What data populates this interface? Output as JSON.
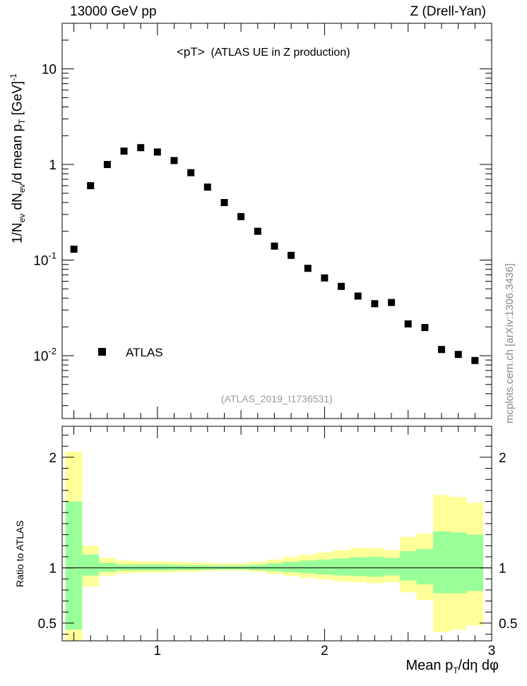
{
  "header": {
    "energy_label": "13000 GeV pp",
    "process_label": "Z (Drell-Yan)"
  },
  "watermark": "mcplots.cern.ch [arXiv:1306.3436]",
  "colors": {
    "data_marker": "#000000",
    "band_outer": "#ffff99",
    "band_inner": "#99ff99",
    "analysis_text": "#999999"
  },
  "chart_data": [
    {
      "type": "scatter",
      "title_main": "<pT>",
      "title_sub": "(ATLAS UE in Z production)",
      "analysis_id": "(ATLAS_2019_I1736531)",
      "ylabel": "1/N_ev dN_ev/d mean p_T [GeV]^-1",
      "ylabel_parts": {
        "a": "1/N",
        "b": "ev",
        "c": " dN",
        "d": "ev",
        "e": "/d mean p",
        "f": "T",
        "g": " [GeV]",
        "h": "-1"
      },
      "yscale": "log",
      "ylim": [
        0.0022,
        30
      ],
      "xlim": [
        0.43,
        3.0
      ],
      "y_tick_labels": [
        "10",
        "1",
        "10^-1",
        "10^-2"
      ],
      "legend": [
        {
          "name": "ATLAS",
          "marker": "square"
        }
      ],
      "series": [
        {
          "name": "ATLAS",
          "x": [
            0.5,
            0.6,
            0.7,
            0.8,
            0.9,
            1.0,
            1.1,
            1.2,
            1.3,
            1.4,
            1.5,
            1.6,
            1.7,
            1.8,
            1.9,
            2.0,
            2.1,
            2.2,
            2.3,
            2.4,
            2.5,
            2.6,
            2.7,
            2.8,
            2.9
          ],
          "y": [
            0.13,
            0.6,
            1.0,
            1.38,
            1.5,
            1.35,
            1.1,
            0.82,
            0.58,
            0.4,
            0.285,
            0.2,
            0.14,
            0.112,
            0.082,
            0.065,
            0.053,
            0.042,
            0.035,
            0.036,
            0.0215,
            0.0197,
            0.0116,
            0.0103,
            0.0089
          ]
        }
      ]
    },
    {
      "type": "area",
      "ylabel": "Ratio to ATLAS",
      "xlabel": "Mean p_T/dη dφ",
      "xlabel_parts": {
        "a": "Mean p",
        "b": "T",
        "c": "/dη dφ"
      },
      "xlim": [
        0.43,
        3.0
      ],
      "ylim": [
        0.34,
        2.28
      ],
      "x_tick_labels": [
        "1",
        "2",
        "3"
      ],
      "y_tick_labels": [
        "2",
        "1",
        "0.5"
      ],
      "reference_line": 1.0,
      "bins": [
        0.45,
        0.55,
        0.65,
        0.75,
        0.85,
        0.95,
        1.05,
        1.15,
        1.25,
        1.35,
        1.45,
        1.55,
        1.65,
        1.75,
        1.85,
        1.95,
        2.05,
        2.15,
        2.25,
        2.35,
        2.45,
        2.55,
        2.65,
        2.75,
        2.85,
        2.95
      ],
      "outer_band": {
        "lower": [
          0.34,
          0.83,
          0.93,
          0.95,
          0.955,
          0.955,
          0.96,
          0.965,
          0.97,
          0.975,
          0.975,
          0.965,
          0.945,
          0.925,
          0.91,
          0.895,
          0.88,
          0.87,
          0.86,
          0.87,
          0.78,
          0.71,
          0.42,
          0.44,
          0.48
        ],
        "upper": [
          2.05,
          1.2,
          1.09,
          1.065,
          1.06,
          1.06,
          1.055,
          1.05,
          1.045,
          1.04,
          1.04,
          1.055,
          1.075,
          1.1,
          1.12,
          1.14,
          1.16,
          1.18,
          1.18,
          1.16,
          1.28,
          1.31,
          1.66,
          1.64,
          1.59
        ]
      },
      "inner_band": {
        "lower": [
          0.44,
          0.93,
          0.965,
          0.975,
          0.975,
          0.975,
          0.978,
          0.98,
          0.982,
          0.985,
          0.985,
          0.98,
          0.97,
          0.96,
          0.95,
          0.94,
          0.93,
          0.925,
          0.92,
          0.93,
          0.885,
          0.85,
          0.77,
          0.77,
          0.79
        ],
        "upper": [
          1.6,
          1.12,
          1.045,
          1.03,
          1.03,
          1.03,
          1.028,
          1.025,
          1.022,
          1.02,
          1.02,
          1.028,
          1.04,
          1.055,
          1.065,
          1.075,
          1.085,
          1.095,
          1.1,
          1.09,
          1.15,
          1.17,
          1.33,
          1.32,
          1.3
        ]
      }
    }
  ]
}
